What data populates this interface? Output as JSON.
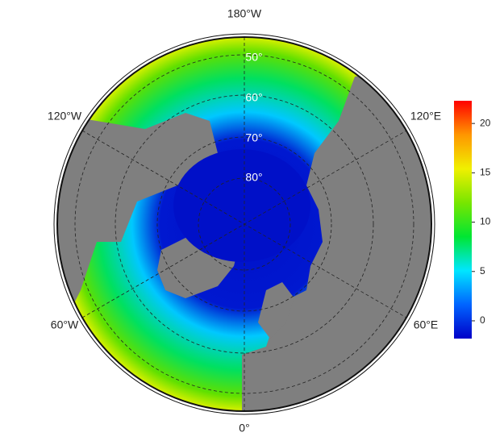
{
  "map": {
    "longitude_labels": [
      "180°W",
      "120°W",
      "120°E",
      "60°W",
      "60°E",
      "0°"
    ],
    "latitude_labels": [
      "50°",
      "60°",
      "70°",
      "80°"
    ],
    "colorbar": {
      "lim": [
        -1.8,
        22.3
      ],
      "ticks": [
        0,
        5,
        10,
        15,
        20
      ],
      "colors": [
        "#0000c8",
        "#0064ff",
        "#00e6ff",
        "#00e632",
        "#78e600",
        "#f0f000",
        "#ff9600",
        "#ff0000"
      ]
    }
  }
}
